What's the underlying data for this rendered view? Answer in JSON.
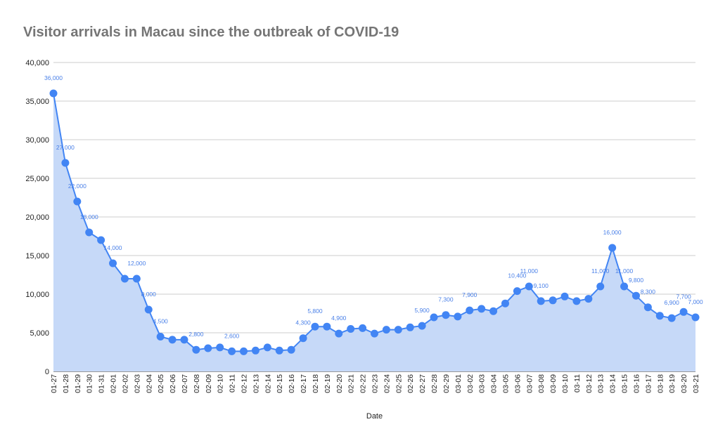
{
  "chart_data": {
    "type": "area",
    "title": "Visitor arrivals in Macau since the outbreak of COVID-19",
    "xlabel": "Date",
    "ylabel": "",
    "ylim": [
      0,
      40000
    ],
    "yticks": [
      "0",
      "5,000",
      "10,000",
      "15,000",
      "20,000",
      "25,000",
      "30,000",
      "35,000",
      "40,000"
    ],
    "grid": true,
    "legend": "none",
    "line_color": "#4285f4",
    "fill_color": "#c6d9f8",
    "label_color": "#4a80e8",
    "points": [
      {
        "date": "01-27",
        "value": 36000,
        "label": "36,000"
      },
      {
        "date": "01-28",
        "value": 27000,
        "label": "27,000"
      },
      {
        "date": "01-29",
        "value": 22000,
        "label": "22,000"
      },
      {
        "date": "01-30",
        "value": 18000,
        "label": "18,000"
      },
      {
        "date": "01-31",
        "value": 17000,
        "label": ""
      },
      {
        "date": "02-01",
        "value": 14000,
        "label": "14,000"
      },
      {
        "date": "02-02",
        "value": 12000,
        "label": ""
      },
      {
        "date": "02-03",
        "value": 12000,
        "label": "12,000"
      },
      {
        "date": "02-04",
        "value": 8000,
        "label": "8,000"
      },
      {
        "date": "02-05",
        "value": 4500,
        "label": "4,500"
      },
      {
        "date": "02-06",
        "value": 4100,
        "label": ""
      },
      {
        "date": "02-07",
        "value": 4100,
        "label": ""
      },
      {
        "date": "02-08",
        "value": 2800,
        "label": "2,800"
      },
      {
        "date": "02-09",
        "value": 3000,
        "label": ""
      },
      {
        "date": "02-10",
        "value": 3100,
        "label": ""
      },
      {
        "date": "02-11",
        "value": 2600,
        "label": "2,600"
      },
      {
        "date": "02-12",
        "value": 2600,
        "label": ""
      },
      {
        "date": "02-13",
        "value": 2700,
        "label": ""
      },
      {
        "date": "02-14",
        "value": 3100,
        "label": ""
      },
      {
        "date": "02-15",
        "value": 2700,
        "label": ""
      },
      {
        "date": "02-16",
        "value": 2800,
        "label": ""
      },
      {
        "date": "02-17",
        "value": 4300,
        "label": "4,300"
      },
      {
        "date": "02-18",
        "value": 5800,
        "label": "5,800"
      },
      {
        "date": "02-19",
        "value": 5800,
        "label": ""
      },
      {
        "date": "02-20",
        "value": 4900,
        "label": "4,900"
      },
      {
        "date": "02-21",
        "value": 5500,
        "label": ""
      },
      {
        "date": "02-22",
        "value": 5600,
        "label": ""
      },
      {
        "date": "02-23",
        "value": 4900,
        "label": ""
      },
      {
        "date": "02-24",
        "value": 5400,
        "label": ""
      },
      {
        "date": "02-25",
        "value": 5400,
        "label": ""
      },
      {
        "date": "02-26",
        "value": 5700,
        "label": ""
      },
      {
        "date": "02-27",
        "value": 5900,
        "label": "5,900"
      },
      {
        "date": "02-28",
        "value": 7000,
        "label": ""
      },
      {
        "date": "02-29",
        "value": 7300,
        "label": "7,300"
      },
      {
        "date": "03-01",
        "value": 7100,
        "label": ""
      },
      {
        "date": "03-02",
        "value": 7900,
        "label": "7,900"
      },
      {
        "date": "03-03",
        "value": 8100,
        "label": ""
      },
      {
        "date": "03-04",
        "value": 7800,
        "label": ""
      },
      {
        "date": "03-05",
        "value": 8800,
        "label": ""
      },
      {
        "date": "03-06",
        "value": 10400,
        "label": "10,400"
      },
      {
        "date": "03-07",
        "value": 11000,
        "label": "11,000"
      },
      {
        "date": "03-08",
        "value": 9100,
        "label": "9,100"
      },
      {
        "date": "03-09",
        "value": 9200,
        "label": ""
      },
      {
        "date": "03-10",
        "value": 9700,
        "label": ""
      },
      {
        "date": "03-11",
        "value": 9100,
        "label": ""
      },
      {
        "date": "03-12",
        "value": 9400,
        "label": ""
      },
      {
        "date": "03-13",
        "value": 11000,
        "label": "11,000"
      },
      {
        "date": "03-14",
        "value": 16000,
        "label": "16,000"
      },
      {
        "date": "03-15",
        "value": 11000,
        "label": "11,000"
      },
      {
        "date": "03-16",
        "value": 9800,
        "label": "9,800"
      },
      {
        "date": "03-17",
        "value": 8300,
        "label": "8,300"
      },
      {
        "date": "03-18",
        "value": 7200,
        "label": ""
      },
      {
        "date": "03-19",
        "value": 6900,
        "label": "6,900"
      },
      {
        "date": "03-20",
        "value": 7700,
        "label": "7,700"
      },
      {
        "date": "03-21",
        "value": 7000,
        "label": "7,000"
      }
    ]
  }
}
